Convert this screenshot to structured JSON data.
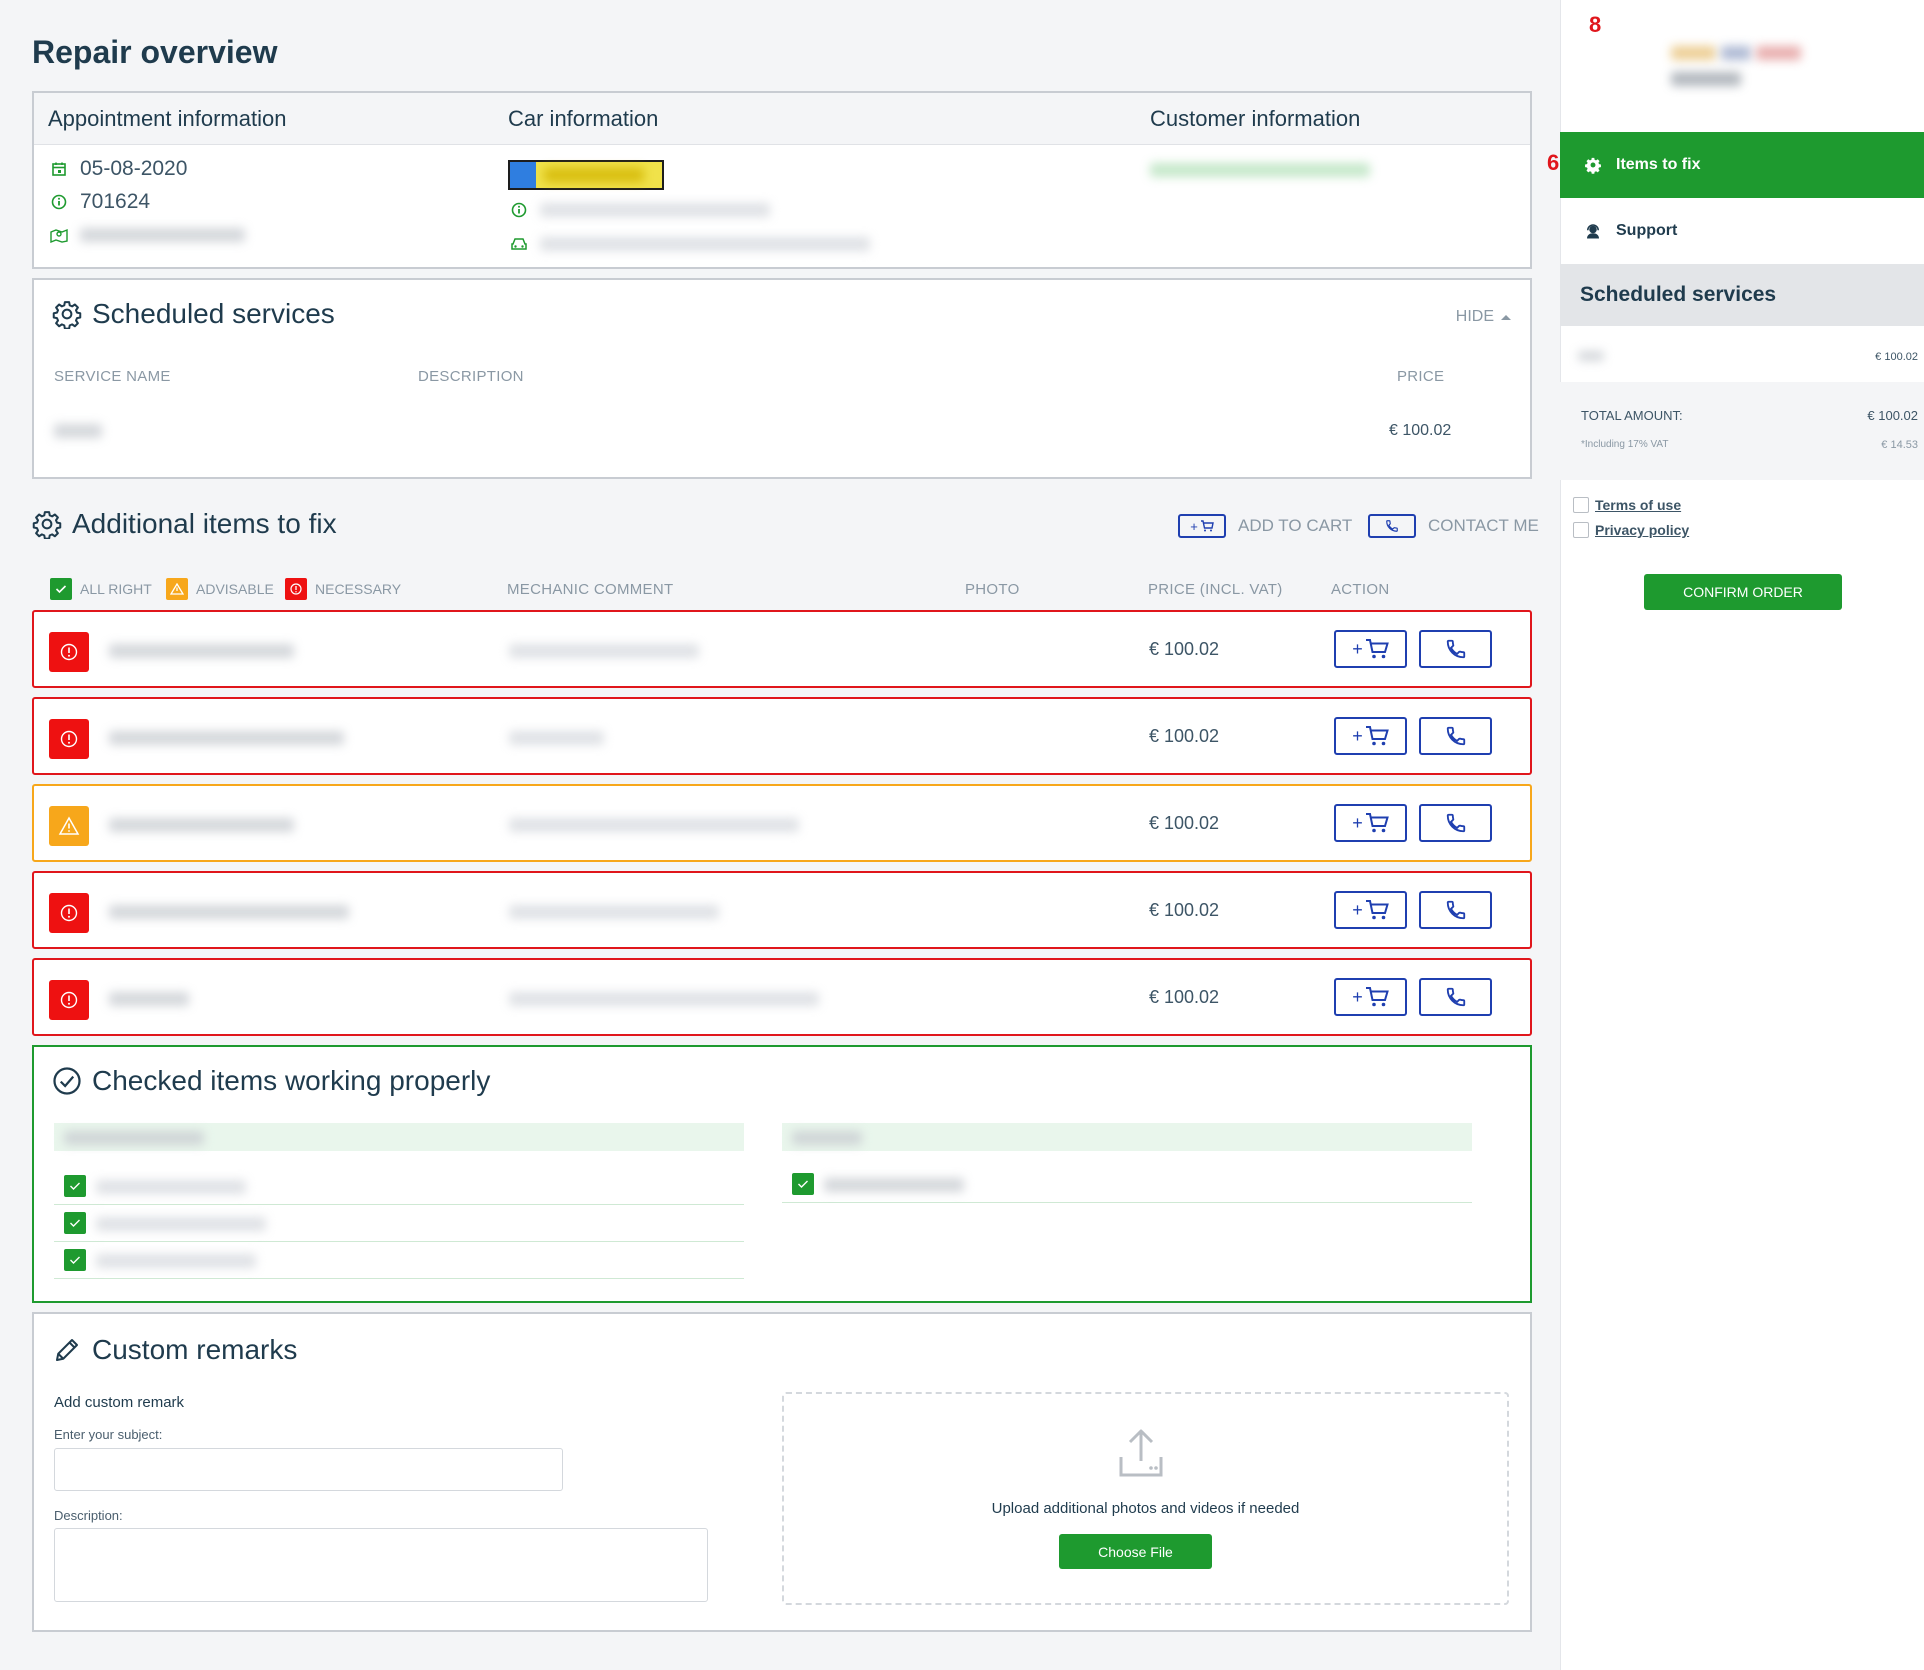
{
  "page": {
    "title": "Repair overview"
  },
  "info": {
    "appointment_heading": "Appointment information",
    "car_heading": "Car information",
    "customer_heading": "Customer information",
    "date": "05-08-2020",
    "number": "701624"
  },
  "scheduled": {
    "title": "Scheduled services",
    "hide_label": "HIDE",
    "columns": {
      "name": "SERVICE NAME",
      "description": "DESCRIPTION",
      "price": "PRICE"
    },
    "row_price": "€ 100.02"
  },
  "additional": {
    "title": "Additional items to fix",
    "add_to_cart_label": "ADD TO CART",
    "contact_me_label": "CONTACT ME",
    "mini_cart_symbol": "+",
    "legend": {
      "all_right": "ALL RIGHT",
      "advisable": "ADVISABLE",
      "necessary": "NECESSARY"
    },
    "columns": {
      "comment": "MECHANIC COMMENT",
      "photo": "PHOTO",
      "price": "PRICE (INCL. VAT)",
      "action": "ACTION"
    },
    "rows": [
      {
        "status": "necessary",
        "price": "€ 100.02"
      },
      {
        "status": "necessary",
        "price": "€ 100.02"
      },
      {
        "status": "advisable",
        "price": "€ 100.02"
      },
      {
        "status": "necessary",
        "price": "€ 100.02"
      },
      {
        "status": "necessary",
        "price": "€ 100.02"
      }
    ],
    "cart_plus": "+"
  },
  "checked": {
    "title": "Checked items working properly"
  },
  "remarks": {
    "title": "Custom remarks",
    "add_label": "Add custom remark",
    "subject_label": "Enter your subject:",
    "description_label": "Description:",
    "upload_text": "Upload additional photos and videos if needed",
    "choose_file": "Choose File"
  },
  "sidebar": {
    "annotation_top": "8",
    "annotation_nav": "6",
    "nav": [
      {
        "label": "Items to fix",
        "icon": "gear-icon",
        "active": true
      },
      {
        "label": "Support",
        "icon": "support-agent-icon",
        "active": false
      }
    ],
    "scheduled_title": "Scheduled services",
    "service_price": "€ 100.02",
    "total_label": "TOTAL AMOUNT:",
    "total_value": "€ 100.02",
    "vat_label": "*Including 17% VAT",
    "vat_value": "€ 14.53",
    "terms": "Terms of use",
    "privacy": "Privacy policy",
    "confirm": "CONFIRM ORDER"
  },
  "colors": {
    "brand_green": "#1e9a2f",
    "necessary_red": "#e0161c",
    "advisable_orange": "#f7a71b",
    "action_blue": "#1f3fb0"
  }
}
